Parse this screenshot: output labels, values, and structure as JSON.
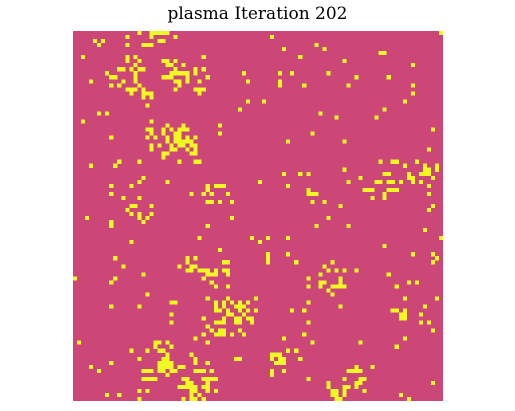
{
  "title": "plasma Iteration 202",
  "simulation": {
    "colormap": "plasma",
    "iteration": 202,
    "grid_size": 92,
    "dead_color": "#cc4778",
    "alive_color": "#f0f921",
    "approx_live_fraction": 0.09
  }
}
